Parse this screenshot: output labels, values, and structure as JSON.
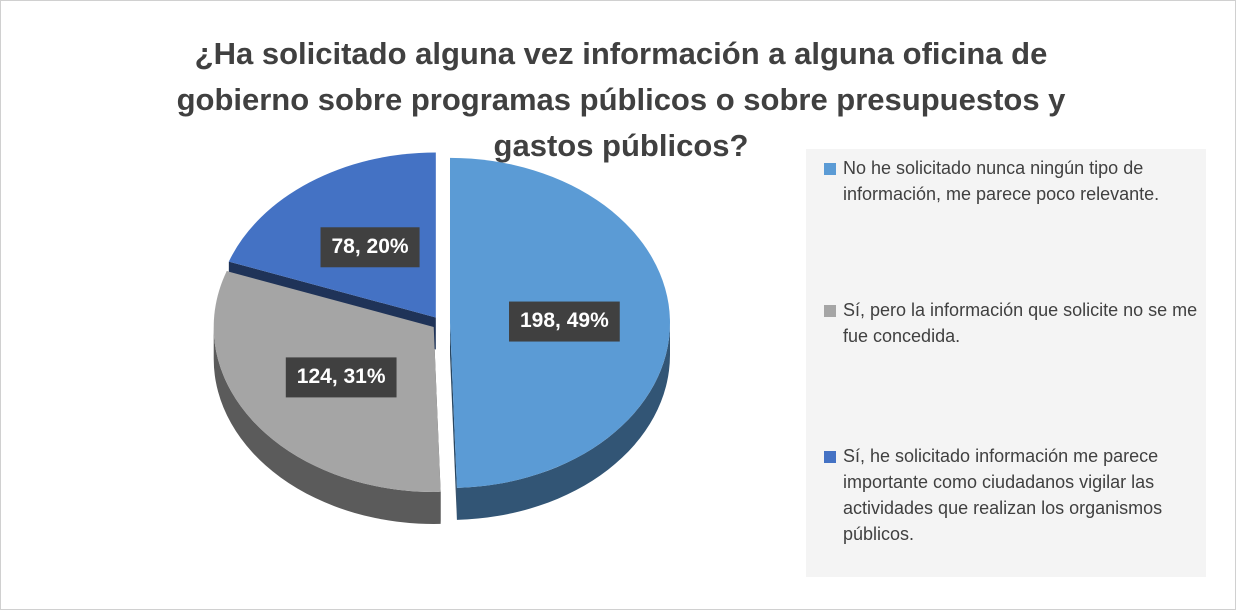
{
  "chart_data": {
    "type": "pie",
    "title": "¿Ha solicitado alguna vez información a alguna oficina de gobierno sobre programas públicos o sobre presupuestos y gastos públicos?",
    "categories": [
      "No he solicitado nunca ningún tipo de información,  me parece poco relevante.",
      "Sí, pero la información que solicite no se me fue concedida.",
      "Sí, he solicitado información me parece importante como ciudadanos vigilar las actividades que realizan los organismos públicos."
    ],
    "values": [
      198,
      124,
      78
    ],
    "value_labels": [
      "198, 49%",
      "124, 31%",
      "78, 20%"
    ],
    "colors": [
      "#5b9bd5",
      "#a5a5a5",
      "#4472c4"
    ],
    "legend": "right"
  }
}
